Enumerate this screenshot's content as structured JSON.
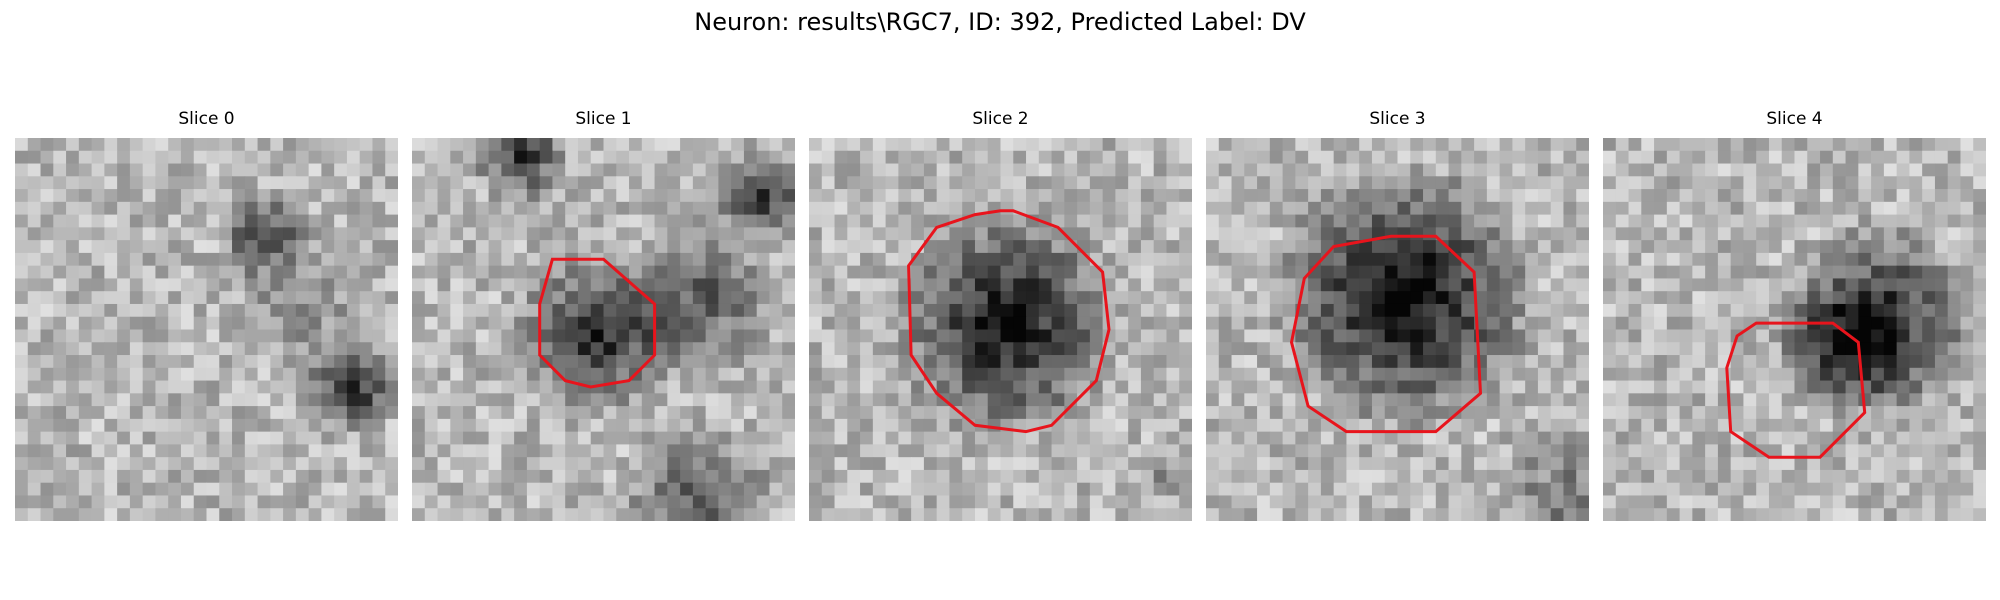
{
  "title": "Neuron: results\\RGC7, ID: 392, Predicted Label: DV",
  "contour_color": "#e8141c",
  "slices": [
    {
      "label": "Slice 0",
      "seed": 11,
      "contour": false
    },
    {
      "label": "Slice 1",
      "seed": 23,
      "contour": true
    },
    {
      "label": "Slice 2",
      "seed": 37,
      "contour": true
    },
    {
      "label": "Slice 3",
      "seed": 41,
      "contour": true
    },
    {
      "label": "Slice 4",
      "seed": 53,
      "contour": true
    }
  ]
}
